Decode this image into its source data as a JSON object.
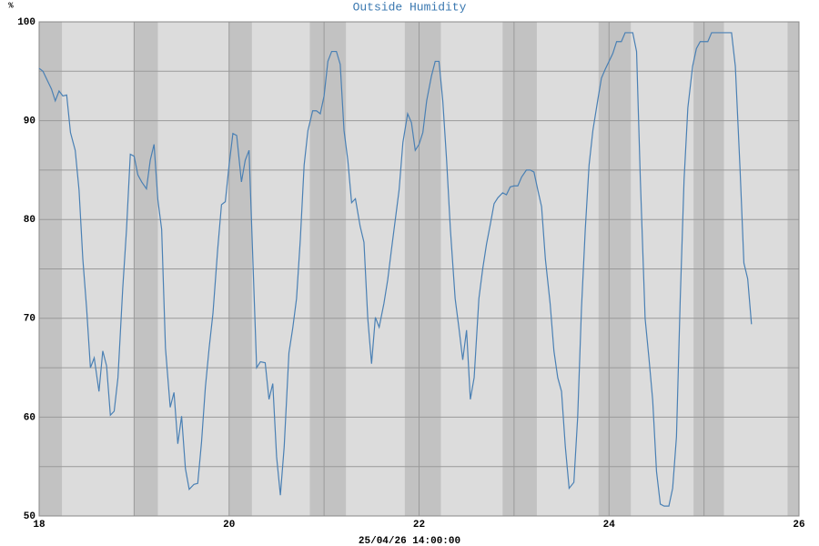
{
  "chart_data": {
    "type": "line",
    "title": "Outside Humidity",
    "ylabel": "%",
    "xlabel": "25/04/26 14:00:00",
    "color": "#4a80b4",
    "xlim": [
      18,
      26
    ],
    "ylim": [
      50,
      100
    ],
    "xticks": [
      18,
      20,
      22,
      24,
      26
    ],
    "yticks": [
      50,
      60,
      70,
      80,
      90,
      100
    ],
    "minor_xticks": [
      19,
      21,
      23,
      25
    ],
    "minor_yticks": [
      55,
      65,
      75,
      85,
      95
    ],
    "grid": true,
    "shading": [
      [
        18,
        18.24
      ],
      [
        19,
        19.25
      ],
      [
        20,
        20.24
      ],
      [
        20.85,
        21.23
      ],
      [
        21.85,
        22.23
      ],
      [
        22.88,
        23.24
      ],
      [
        23.89,
        24.23
      ],
      [
        24.89,
        25.21
      ],
      [
        25.88,
        26
      ]
    ],
    "x": [
      18.0,
      18.04,
      18.08,
      18.13,
      18.17,
      18.21,
      18.25,
      18.29,
      18.33,
      18.38,
      18.42,
      18.46,
      18.5,
      18.54,
      18.58,
      18.63,
      18.67,
      18.71,
      18.75,
      18.79,
      18.83,
      18.88,
      18.92,
      18.96,
      19.0,
      19.04,
      19.08,
      19.13,
      19.17,
      19.21,
      19.25,
      19.29,
      19.33,
      19.38,
      19.42,
      19.46,
      19.5,
      19.54,
      19.58,
      19.63,
      19.67,
      19.71,
      19.75,
      19.79,
      19.83,
      19.88,
      19.92,
      19.96,
      20.0,
      20.04,
      20.08,
      20.13,
      20.17,
      20.21,
      20.25,
      20.29,
      20.33,
      20.38,
      20.42,
      20.46,
      20.5,
      20.54,
      20.58,
      20.63,
      20.67,
      20.71,
      20.75,
      20.79,
      20.83,
      20.88,
      20.92,
      20.96,
      21.0,
      21.04,
      21.08,
      21.13,
      21.17,
      21.21,
      21.25,
      21.29,
      21.33,
      21.38,
      21.42,
      21.46,
      21.5,
      21.54,
      21.58,
      21.63,
      21.67,
      21.71,
      21.75,
      21.79,
      21.83,
      21.88,
      21.92,
      21.96,
      22.0,
      22.04,
      22.08,
      22.13,
      22.17,
      22.21,
      22.25,
      22.29,
      22.33,
      22.38,
      22.42,
      22.46,
      22.5,
      22.54,
      22.58,
      22.63,
      22.67,
      22.71,
      22.75,
      22.79,
      22.83,
      22.88,
      22.92,
      22.96,
      23.0,
      23.04,
      23.08,
      23.13,
      23.17,
      23.21,
      23.25,
      23.29,
      23.33,
      23.38,
      23.42,
      23.46,
      23.5,
      23.54,
      23.58,
      23.63,
      23.67,
      23.71,
      23.75,
      23.79,
      23.83,
      23.88,
      23.92,
      23.96,
      24.0,
      24.04,
      24.08,
      24.13,
      24.17,
      24.21,
      24.25,
      24.29,
      24.33,
      24.38,
      24.42,
      24.46,
      24.5,
      24.54,
      24.58,
      24.63,
      24.67,
      24.71,
      24.75,
      24.79,
      24.83,
      24.88,
      24.92,
      24.96,
      25.0,
      25.04,
      25.08,
      25.13,
      25.17,
      25.21,
      25.25,
      25.29,
      25.33,
      25.38,
      25.42,
      25.46,
      25.5
    ],
    "values": [
      95.3,
      95.0,
      94.2,
      93.2,
      92.0,
      93.0,
      92.5,
      92.6,
      88.8,
      87.0,
      83.0,
      76.0,
      71.0,
      65.0,
      66.0,
      62.6,
      66.7,
      65.2,
      60.2,
      60.6,
      64.0,
      73.0,
      79.0,
      86.6,
      86.4,
      84.5,
      83.8,
      83.1,
      86.0,
      87.6,
      82.0,
      79.0,
      67.0,
      61.0,
      62.5,
      57.3,
      60.1,
      54.8,
      52.7,
      53.2,
      53.3,
      57.5,
      63.0,
      67.0,
      70.5,
      77.0,
      81.5,
      81.8,
      85.5,
      88.7,
      88.5,
      83.8,
      86.0,
      87.0,
      76.0,
      65.0,
      65.6,
      65.5,
      61.8,
      63.4,
      56.0,
      52.1,
      57.0,
      66.5,
      69.0,
      72.0,
      78.0,
      85.5,
      89.0,
      91.0,
      91.0,
      90.7,
      92.5,
      96.0,
      97.0,
      97.0,
      95.7,
      89.0,
      86.0,
      81.7,
      82.1,
      79.3,
      77.7,
      70.0,
      65.4,
      70.1,
      69.1,
      71.5,
      73.9,
      77.0,
      80.0,
      83.0,
      87.8,
      90.7,
      89.8,
      87.0,
      87.6,
      88.8,
      92.0,
      94.5,
      96.0,
      96.0,
      92.0,
      86.0,
      79.0,
      72.0,
      69.0,
      65.8,
      68.8,
      61.8,
      64.0,
      72.0,
      75.0,
      77.5,
      79.5,
      81.6,
      82.2,
      82.7,
      82.5,
      83.3,
      83.4,
      83.4,
      84.3,
      85.0,
      85.0,
      84.8,
      83.0,
      81.3,
      76.0,
      71.5,
      66.7,
      64.0,
      62.6,
      57.0,
      52.8,
      53.4,
      60.0,
      71.0,
      79.0,
      85.5,
      89.0,
      92.0,
      94.3,
      95.2,
      96.0,
      96.8,
      98.0,
      98.0,
      98.9,
      98.9,
      98.9,
      97.0,
      84.0,
      70.0,
      66.0,
      61.7,
      54.5,
      51.2,
      51.0,
      51.0,
      52.8,
      58.0,
      72.0,
      84.0,
      91.3,
      95.5,
      97.3,
      98.0,
      98.0,
      98.0,
      98.9,
      98.9,
      98.9,
      98.9,
      98.9,
      98.9,
      95.5,
      85.0,
      75.6,
      74.0,
      69.4
    ]
  }
}
